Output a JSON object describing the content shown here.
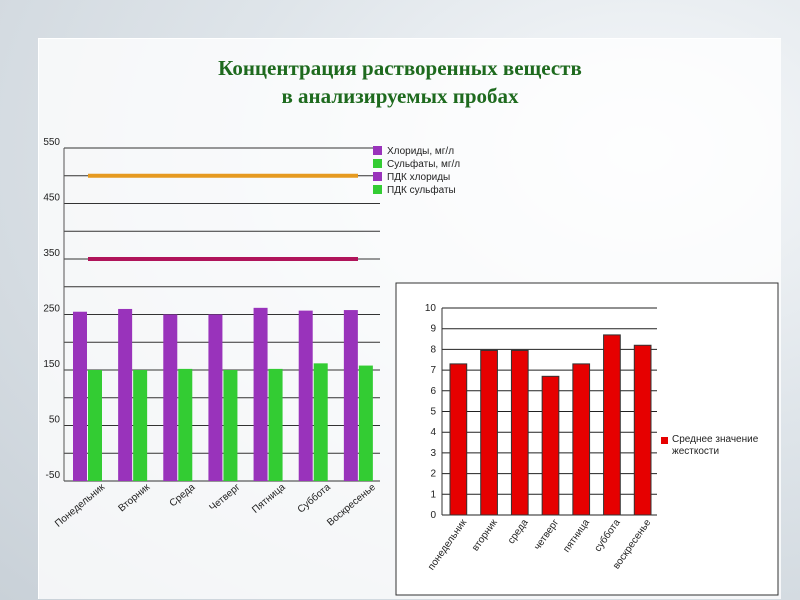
{
  "slide": {
    "title_line1": "Концентрация растворенных веществ",
    "title_line2": "в анализируемых пробах"
  },
  "colors": {
    "title": "#1e6a1e",
    "chlorides": "#9933bb",
    "sulfates": "#33cc33",
    "pdk_chlorides": "#b0145a",
    "pdk_sulfates": "#e69a20",
    "hardness": "#e60000"
  },
  "chart_data": [
    {
      "type": "bar",
      "categories": [
        "Понедельник",
        "Вторник",
        "Среда",
        "Четверг",
        "Пятница",
        "Суббота",
        "Воскресенье"
      ],
      "series": [
        {
          "name": "Хлориды, мг/л",
          "values": [
            255,
            260,
            250,
            250,
            262,
            257,
            258
          ]
        },
        {
          "name": "Сульфаты, мг/л",
          "values": [
            150,
            150,
            152,
            150,
            152,
            162,
            158
          ]
        }
      ],
      "lines": [
        {
          "name": "ПДК хлориды",
          "value": 350
        },
        {
          "name": "ПДК сульфаты",
          "value": 500
        }
      ],
      "yticks": [
        "550",
        "450",
        "350",
        "250",
        "150",
        "50",
        "-50"
      ],
      "ylim": [
        -50,
        550
      ],
      "grid": true,
      "legend": "top-right"
    },
    {
      "type": "bar",
      "categories": [
        "понедельник",
        "вторник",
        "среда",
        "четверг",
        "пятница",
        "суббота",
        "воскресенье"
      ],
      "series": [
        {
          "name": "Среднее значение жесткости",
          "values": [
            7.3,
            7.95,
            7.95,
            6.7,
            7.3,
            8.7,
            8.2
          ]
        }
      ],
      "yticks": [
        "10",
        "9",
        "8",
        "7",
        "6",
        "5",
        "4",
        "3",
        "2",
        "1",
        "0"
      ],
      "ylim": [
        0,
        10
      ],
      "grid": true,
      "legend": "right"
    }
  ]
}
